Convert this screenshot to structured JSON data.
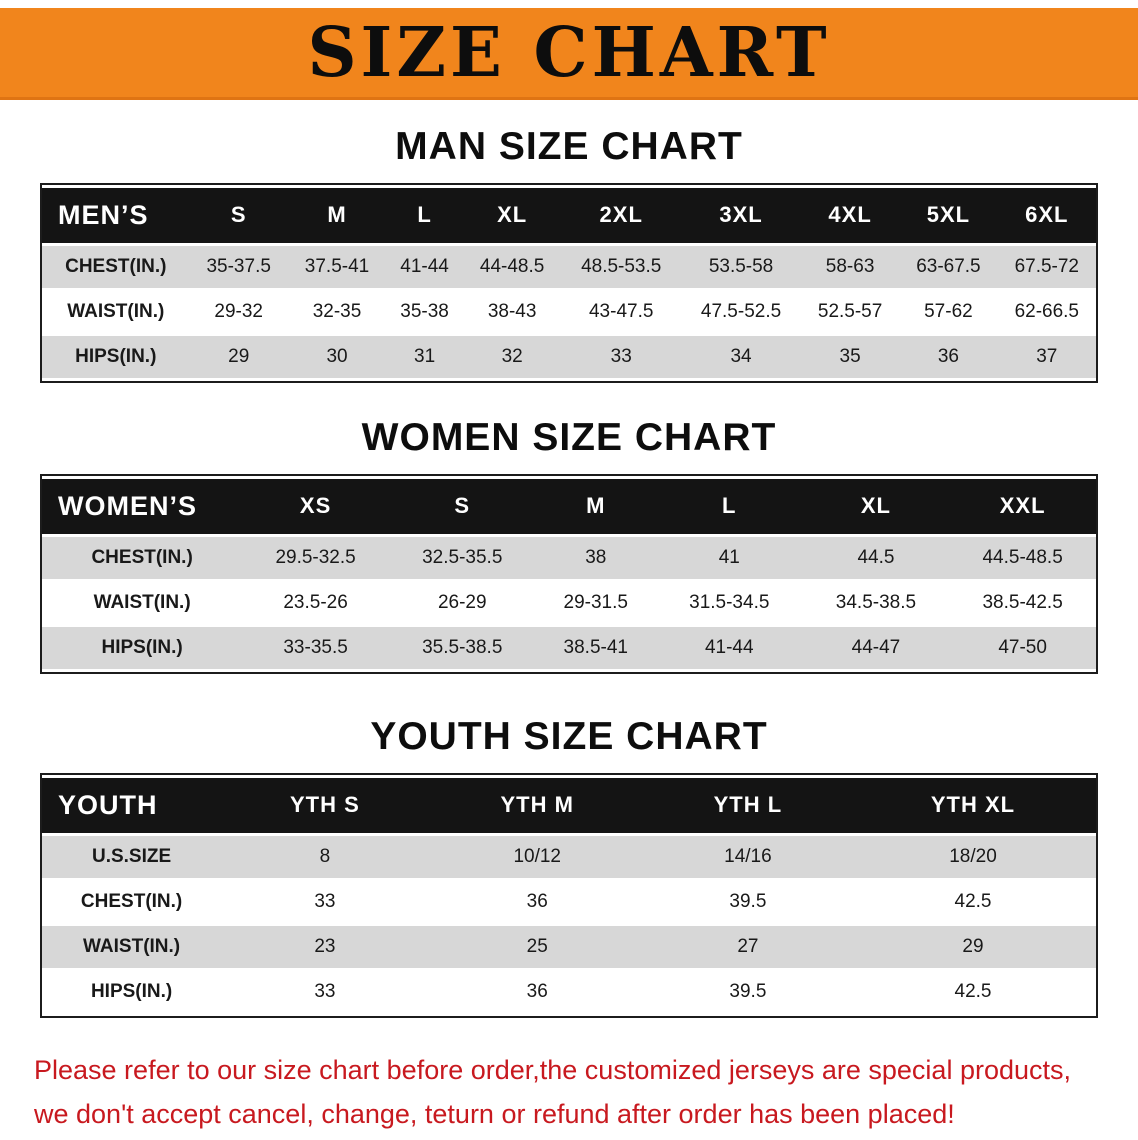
{
  "banner": {
    "title": "SIZE CHART",
    "bg_color": "#f1851c",
    "text_color": "#0d0d0d"
  },
  "sections": [
    {
      "heading": "MAN SIZE CHART",
      "table": {
        "header_label": "MEN’S",
        "columns": [
          "S",
          "M",
          "L",
          "XL",
          "2XL",
          "3XL",
          "4XL",
          "5XL",
          "6XL"
        ],
        "rows": [
          {
            "label": "CHEST(IN.)",
            "values": [
              "35-37.5",
              "37.5-41",
              "41-44",
              "44-48.5",
              "48.5-53.5",
              "53.5-58",
              "58-63",
              "63-67.5",
              "67.5-72"
            ]
          },
          {
            "label": "WAIST(IN.)",
            "values": [
              "29-32",
              "32-35",
              "35-38",
              "38-43",
              "43-47.5",
              "47.5-52.5",
              "52.5-57",
              "57-62",
              "62-66.5"
            ]
          },
          {
            "label": "HIPS(IN.)",
            "values": [
              "29",
              "30",
              "31",
              "32",
              "33",
              "34",
              "35",
              "36",
              "37"
            ]
          }
        ]
      }
    },
    {
      "heading": "WOMEN SIZE CHART",
      "table": {
        "header_label": "WOMEN’S",
        "columns": [
          "XS",
          "S",
          "M",
          "L",
          "XL",
          "XXL"
        ],
        "rows": [
          {
            "label": "CHEST(IN.)",
            "values": [
              "29.5-32.5",
              "32.5-35.5",
              "38",
              "41",
              "44.5",
              "44.5-48.5"
            ]
          },
          {
            "label": "WAIST(IN.)",
            "values": [
              "23.5-26",
              "26-29",
              "29-31.5",
              "31.5-34.5",
              "34.5-38.5",
              "38.5-42.5"
            ]
          },
          {
            "label": "HIPS(IN.)",
            "values": [
              "33-35.5",
              "35.5-38.5",
              "38.5-41",
              "41-44",
              "44-47",
              "47-50"
            ]
          }
        ]
      }
    },
    {
      "heading": "YOUTH SIZE CHART",
      "table": {
        "header_label": "YOUTH",
        "columns": [
          "YTH S",
          "YTH M",
          "YTH L",
          "YTH XL"
        ],
        "rows": [
          {
            "label": "U.S.SIZE",
            "values": [
              "8",
              "10/12",
              "14/16",
              "18/20"
            ]
          },
          {
            "label": "CHEST(IN.)",
            "values": [
              "33",
              "36",
              "39.5",
              "42.5"
            ]
          },
          {
            "label": "WAIST(IN.)",
            "values": [
              "23",
              "25",
              "27",
              "29"
            ]
          },
          {
            "label": "HIPS(IN.)",
            "values": [
              "33",
              "36",
              "39.5",
              "42.5"
            ]
          }
        ]
      }
    }
  ],
  "footer_note": {
    "color": "#c8191f",
    "line1": "Please refer to our size chart before order,the customized jerseys are special products,",
    "line2": "we don't accept cancel, change, teturn or refund after order has been placed!"
  }
}
